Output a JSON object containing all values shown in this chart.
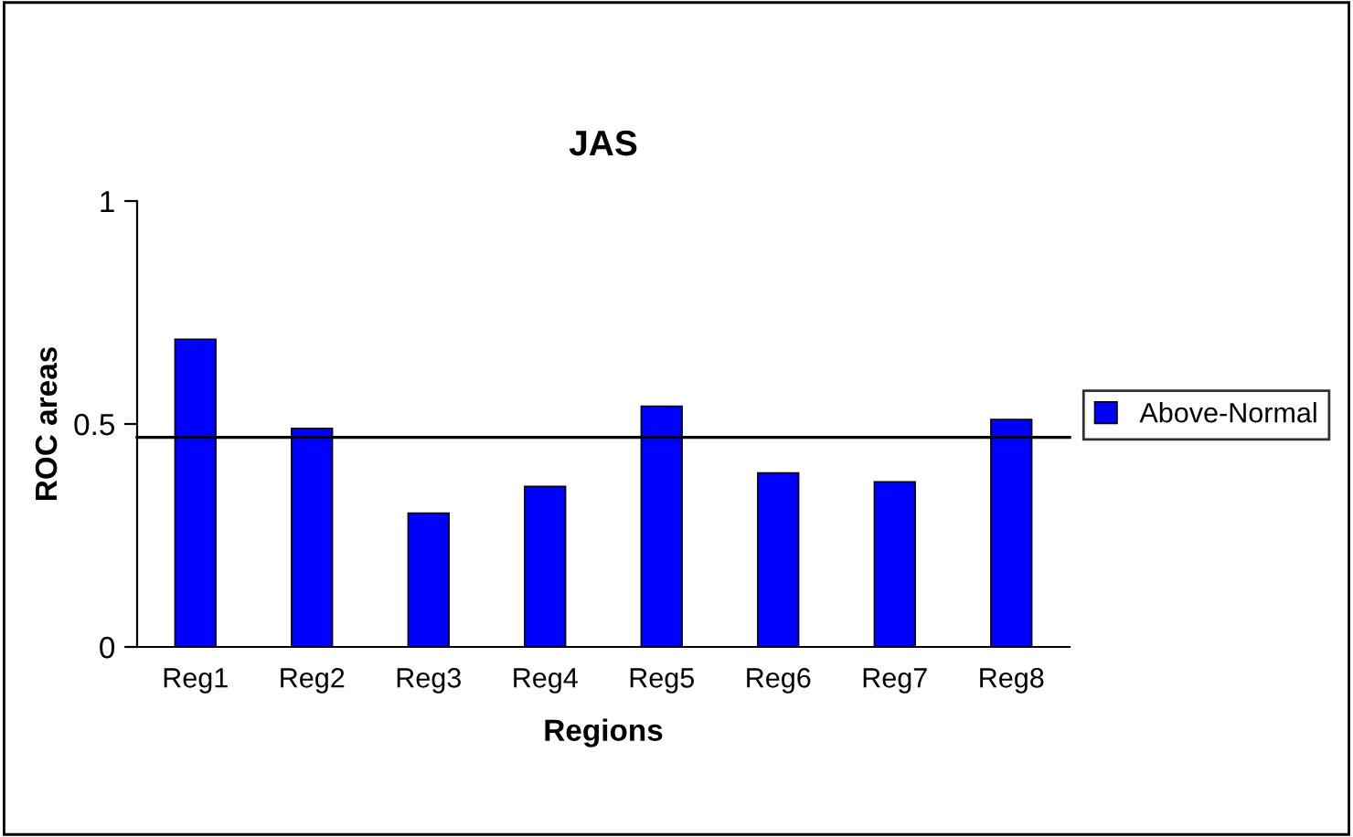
{
  "chart_data": {
    "type": "bar",
    "title": "JAS",
    "xlabel": "Regions",
    "ylabel": "ROC areas",
    "categories": [
      "Reg1",
      "Reg2",
      "Reg3",
      "Reg4",
      "Reg5",
      "Reg6",
      "Reg7",
      "Reg8"
    ],
    "series": [
      {
        "name": "Above-Normal",
        "color": "#0000ff",
        "values": [
          0.69,
          0.49,
          0.3,
          0.36,
          0.54,
          0.39,
          0.37,
          0.51
        ]
      }
    ],
    "ylim": [
      0,
      1
    ],
    "yticks": [
      0,
      0.5,
      1
    ],
    "grid": false,
    "legend": "right",
    "ref_lines": [
      {
        "axis": "y",
        "value": 0.47,
        "color": "#000000"
      }
    ]
  }
}
